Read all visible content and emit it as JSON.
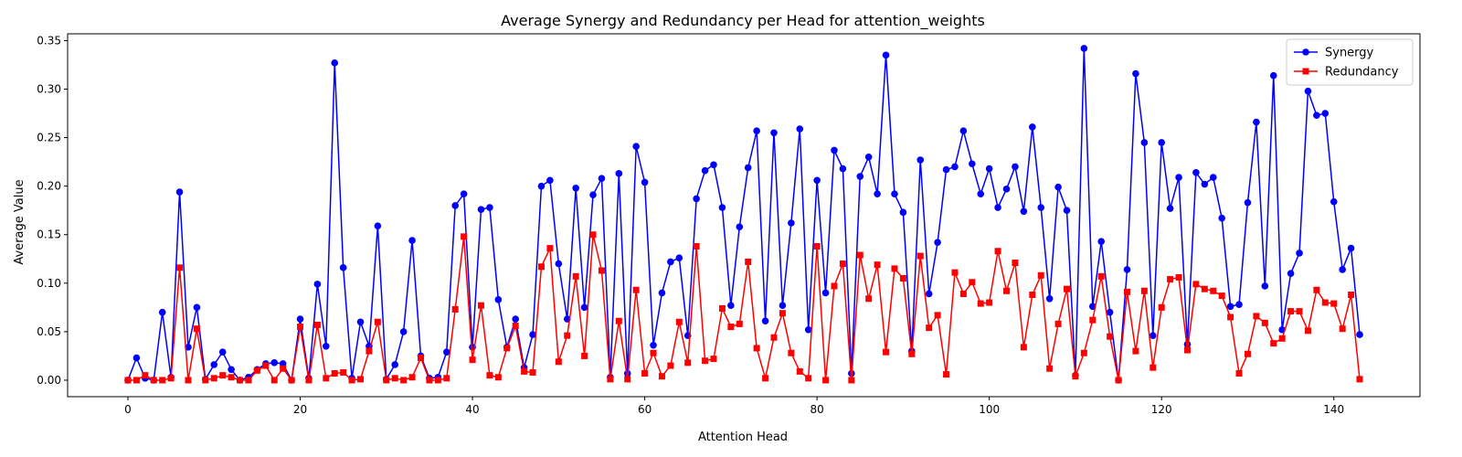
{
  "chart_data": {
    "type": "line",
    "title": "Average Synergy and Redundancy per Head for attention_weights",
    "xlabel": "Attention Head",
    "ylabel": "Average Value",
    "xlim": [
      -7,
      150
    ],
    "ylim": [
      -0.017,
      0.357
    ],
    "xticks": [
      0,
      20,
      40,
      60,
      80,
      100,
      120,
      140
    ],
    "yticks": [
      0.0,
      0.05,
      0.1,
      0.15,
      0.2,
      0.25,
      0.3,
      0.35
    ],
    "ytick_labels": [
      "0.00",
      "0.05",
      "0.10",
      "0.15",
      "0.20",
      "0.25",
      "0.30",
      "0.35"
    ],
    "grid": false,
    "legend_position": "top-right",
    "series": [
      {
        "name": "Synergy",
        "color": "#0000ff",
        "marker": "circle",
        "values": [
          0.0,
          0.023,
          0.002,
          0.0,
          0.07,
          0.003,
          0.194,
          0.034,
          0.075,
          0.001,
          0.016,
          0.029,
          0.011,
          0.0,
          0.003,
          0.011,
          0.017,
          0.018,
          0.017,
          0.0,
          0.063,
          0.002,
          0.099,
          0.035,
          0.327,
          0.116,
          0.002,
          0.06,
          0.035,
          0.159,
          0.001,
          0.016,
          0.05,
          0.144,
          0.025,
          0.002,
          0.003,
          0.029,
          0.18,
          0.192,
          0.034,
          0.176,
          0.178,
          0.083,
          0.034,
          0.063,
          0.013,
          0.047,
          0.2,
          0.206,
          0.12,
          0.063,
          0.198,
          0.075,
          0.191,
          0.208,
          0.003,
          0.213,
          0.007,
          0.241,
          0.204,
          0.036,
          0.09,
          0.122,
          0.126,
          0.046,
          0.187,
          0.216,
          0.222,
          0.178,
          0.077,
          0.158,
          0.219,
          0.257,
          0.061,
          0.255,
          0.077,
          0.162,
          0.259,
          0.052,
          0.206,
          0.09,
          0.237,
          0.218,
          0.007,
          0.21,
          0.23,
          0.192,
          0.335,
          0.192,
          0.173,
          0.03,
          0.227,
          0.089,
          0.142,
          0.217,
          0.22,
          0.257,
          0.223,
          0.192,
          0.218,
          0.178,
          0.197,
          0.22,
          0.174,
          0.261,
          0.178,
          0.084,
          0.199,
          0.175,
          0.005,
          0.342,
          0.076,
          0.143,
          0.07,
          0.0,
          0.114,
          0.316,
          0.245,
          0.046,
          0.245,
          0.177,
          0.209,
          0.037,
          0.214,
          0.202,
          0.209,
          0.167,
          0.076,
          0.078,
          0.183,
          0.266,
          0.097,
          0.314,
          0.052,
          0.11,
          0.131,
          0.298,
          0.273,
          0.275,
          0.184,
          0.114,
          0.136,
          0.047
        ]
      },
      {
        "name": "Redundancy",
        "color": "#ff0000",
        "marker": "square",
        "values": [
          0.0,
          0.0,
          0.005,
          0.0,
          0.0,
          0.002,
          0.116,
          0.0,
          0.053,
          0.0,
          0.002,
          0.005,
          0.003,
          0.0,
          0.0,
          0.01,
          0.015,
          0.0,
          0.012,
          0.0,
          0.055,
          0.0,
          0.057,
          0.002,
          0.007,
          0.008,
          0.0,
          0.001,
          0.03,
          0.06,
          0.0,
          0.002,
          0.0,
          0.003,
          0.023,
          0.0,
          0.0,
          0.002,
          0.073,
          0.148,
          0.021,
          0.077,
          0.005,
          0.003,
          0.033,
          0.056,
          0.009,
          0.008,
          0.117,
          0.136,
          0.019,
          0.046,
          0.107,
          0.025,
          0.15,
          0.113,
          0.001,
          0.061,
          0.001,
          0.093,
          0.007,
          0.028,
          0.004,
          0.015,
          0.06,
          0.018,
          0.138,
          0.02,
          0.022,
          0.074,
          0.055,
          0.058,
          0.122,
          0.033,
          0.002,
          0.044,
          0.069,
          0.028,
          0.009,
          0.002,
          0.138,
          0.0,
          0.097,
          0.12,
          0.0,
          0.129,
          0.084,
          0.119,
          0.029,
          0.115,
          0.105,
          0.027,
          0.128,
          0.054,
          0.067,
          0.006,
          0.111,
          0.089,
          0.101,
          0.079,
          0.08,
          0.133,
          0.092,
          0.121,
          0.034,
          0.088,
          0.108,
          0.012,
          0.058,
          0.094,
          0.004,
          0.028,
          0.062,
          0.107,
          0.045,
          0.0,
          0.091,
          0.03,
          0.092,
          0.013,
          0.075,
          0.104,
          0.106,
          0.031,
          0.099,
          0.094,
          0.092,
          0.087,
          0.065,
          0.007,
          0.027,
          0.066,
          0.059,
          0.038,
          0.043,
          0.071,
          0.071,
          0.051,
          0.093,
          0.08,
          0.079,
          0.053,
          0.088,
          0.001
        ]
      }
    ]
  }
}
